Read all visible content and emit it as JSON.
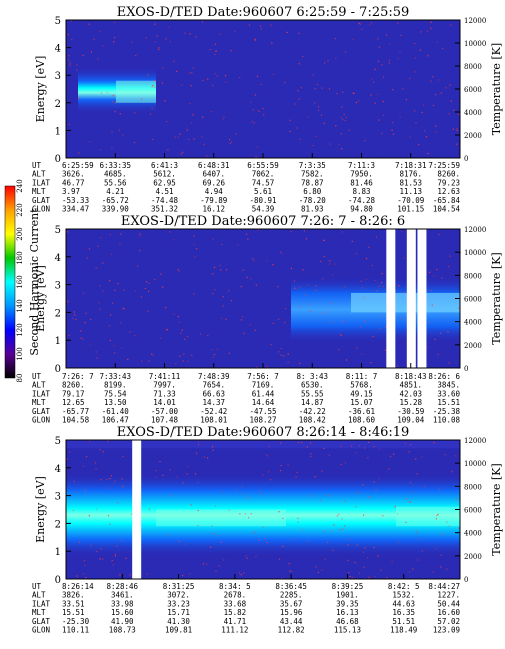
{
  "colors": {
    "background": "#2a2ab5",
    "noise_dots": "#ff3a3a",
    "cyan": "#00ffff",
    "mid_blue": "#0f6bff",
    "bright_cyan": "#7fffe6",
    "gap": "#ffffff"
  },
  "colorbar": {
    "label": "Second Harmonic Current",
    "ticks": [
      "240",
      "220",
      "200",
      "180",
      "160",
      "140",
      "120",
      "100",
      "80"
    ],
    "stops": [
      "#ff0000",
      "#ffa000",
      "#ffff00",
      "#00c800",
      "#00ffff",
      "#0096ff",
      "#0000ff",
      "#5a0096",
      "#000000"
    ]
  },
  "panel_labels": {
    "ylabel": "Energy [eV]",
    "y2label": "Temperature [K]",
    "row_labels": [
      "UT",
      "ALT",
      "ILAT",
      "MLT",
      "GLAT",
      "GLON"
    ]
  },
  "chart_data": [
    {
      "type": "heatmap",
      "title": "EXOS-D/TED   Date:960607   6:25:59 - 7:25:59",
      "ylim": [
        0,
        5
      ],
      "yticks": [
        "0",
        "1",
        "2",
        "3",
        "4",
        "5"
      ],
      "y2lim": [
        0,
        12000
      ],
      "y2ticks": [
        "0",
        "2000",
        "4000",
        "6000",
        "8000",
        "10000",
        "12000"
      ],
      "columns": [
        [
          "6:25:59",
          "3626.",
          "46.77",
          "3.97",
          "-53.33",
          "334.47"
        ],
        [
          "6:33:35",
          "4685.",
          "55.56",
          "4.21",
          "-65.72",
          "339.90"
        ],
        [
          "6:41:3",
          "5612.",
          "62.95",
          "4.51",
          "-74.48",
          "351.32"
        ],
        [
          "6:48:31",
          "6407.",
          "69.26",
          "4.94",
          "-79.89",
          "16.12"
        ],
        [
          "6:55:59",
          "7062.",
          "74.57",
          "5.61",
          "-80.91",
          "54.39"
        ],
        [
          "7:3:35",
          "7582.",
          "78.87",
          "6.80",
          "-78.20",
          "81.93"
        ],
        [
          "7:11:3",
          "7950.",
          "81.46",
          "8.83",
          "-74.28",
          "94.80"
        ],
        [
          "7:18:31",
          "8176.",
          "81.53",
          "11.13",
          "-70.09",
          "101.15"
        ],
        [
          "7:25:59",
          "8260.",
          "79.23",
          "12.63",
          "-65.84",
          "104.54"
        ]
      ],
      "gaps": []
    },
    {
      "type": "heatmap",
      "title": "EXOS-D/TED   Date:960607   7:26: 7 - 8:26: 6",
      "ylim": [
        0,
        5
      ],
      "yticks": [
        "0",
        "1",
        "2",
        "3",
        "4",
        "5"
      ],
      "y2lim": [
        0,
        12000
      ],
      "y2ticks": [
        "0",
        "2000",
        "4000",
        "6000",
        "8000",
        "10000",
        "12000"
      ],
      "columns": [
        [
          "7:26: 7",
          "8260.",
          "79.17",
          "12.65",
          "-65.77",
          "104.58"
        ],
        [
          "7:33:43",
          "8199.",
          "75.54",
          "13.50",
          "-61.40",
          "106.47"
        ],
        [
          "7:41:11",
          "7997.",
          "71.33",
          "14.01",
          "-57.00",
          "107.48"
        ],
        [
          "7:48:39",
          "7654.",
          "66.63",
          "14.37",
          "-52.42",
          "108.01"
        ],
        [
          "7:56: 7",
          "7169.",
          "61.44",
          "14.64",
          "-47.55",
          "108.27"
        ],
        [
          "8: 3:43",
          "6530.",
          "55.55",
          "14.87",
          "-42.22",
          "108.42"
        ],
        [
          "8:11: 7",
          "5768.",
          "49.15",
          "15.07",
          "-36.61",
          "108.60"
        ],
        [
          "8:18:43",
          "4851.",
          "42.03",
          "15.28",
          "-30.59",
          "109.04"
        ],
        [
          "8:26: 6",
          "3845.",
          "33.60",
          "15.51",
          "-25.38",
          "110.08"
        ]
      ],
      "gaps": [
        0.813,
        0.865,
        0.892
      ]
    },
    {
      "type": "heatmap",
      "title": "EXOS-D/TED   Date:960607   8:26:14 - 8:46:19",
      "ylim": [
        0,
        5
      ],
      "yticks": [
        "0",
        "1",
        "2",
        "3",
        "4",
        "5"
      ],
      "y2lim": [
        0,
        12000
      ],
      "y2ticks": [
        "0",
        "2000",
        "4000",
        "6000",
        "8000",
        "10000",
        "12000"
      ],
      "columns": [
        [
          "8:26:14",
          "3826.",
          "33.51",
          "15.51",
          "-25.30",
          "110.11"
        ],
        [
          "8:28:46",
          "3461.",
          "33.98",
          "15.60",
          "41.90",
          "108.73"
        ],
        [
          "8:31:25",
          "3072.",
          "33.23",
          "15.71",
          "41.30",
          "109.81"
        ],
        [
          "8:34: 5",
          "2678.",
          "33.68",
          "15.82",
          "41.71",
          "111.12"
        ],
        [
          "8:36:45",
          "2285.",
          "35.67",
          "15.96",
          "43.44",
          "112.82"
        ],
        [
          "8:39:25",
          "1901.",
          "39.35",
          "16.13",
          "46.68",
          "115.13"
        ],
        [
          "8:42: 5",
          "1532.",
          "44.63",
          "16.35",
          "51.51",
          "118.49"
        ],
        [
          "8:44:27",
          "1227.",
          "50.44",
          "16.60",
          "57.02",
          "123.09"
        ]
      ],
      "gaps": [
        0.168
      ]
    }
  ]
}
